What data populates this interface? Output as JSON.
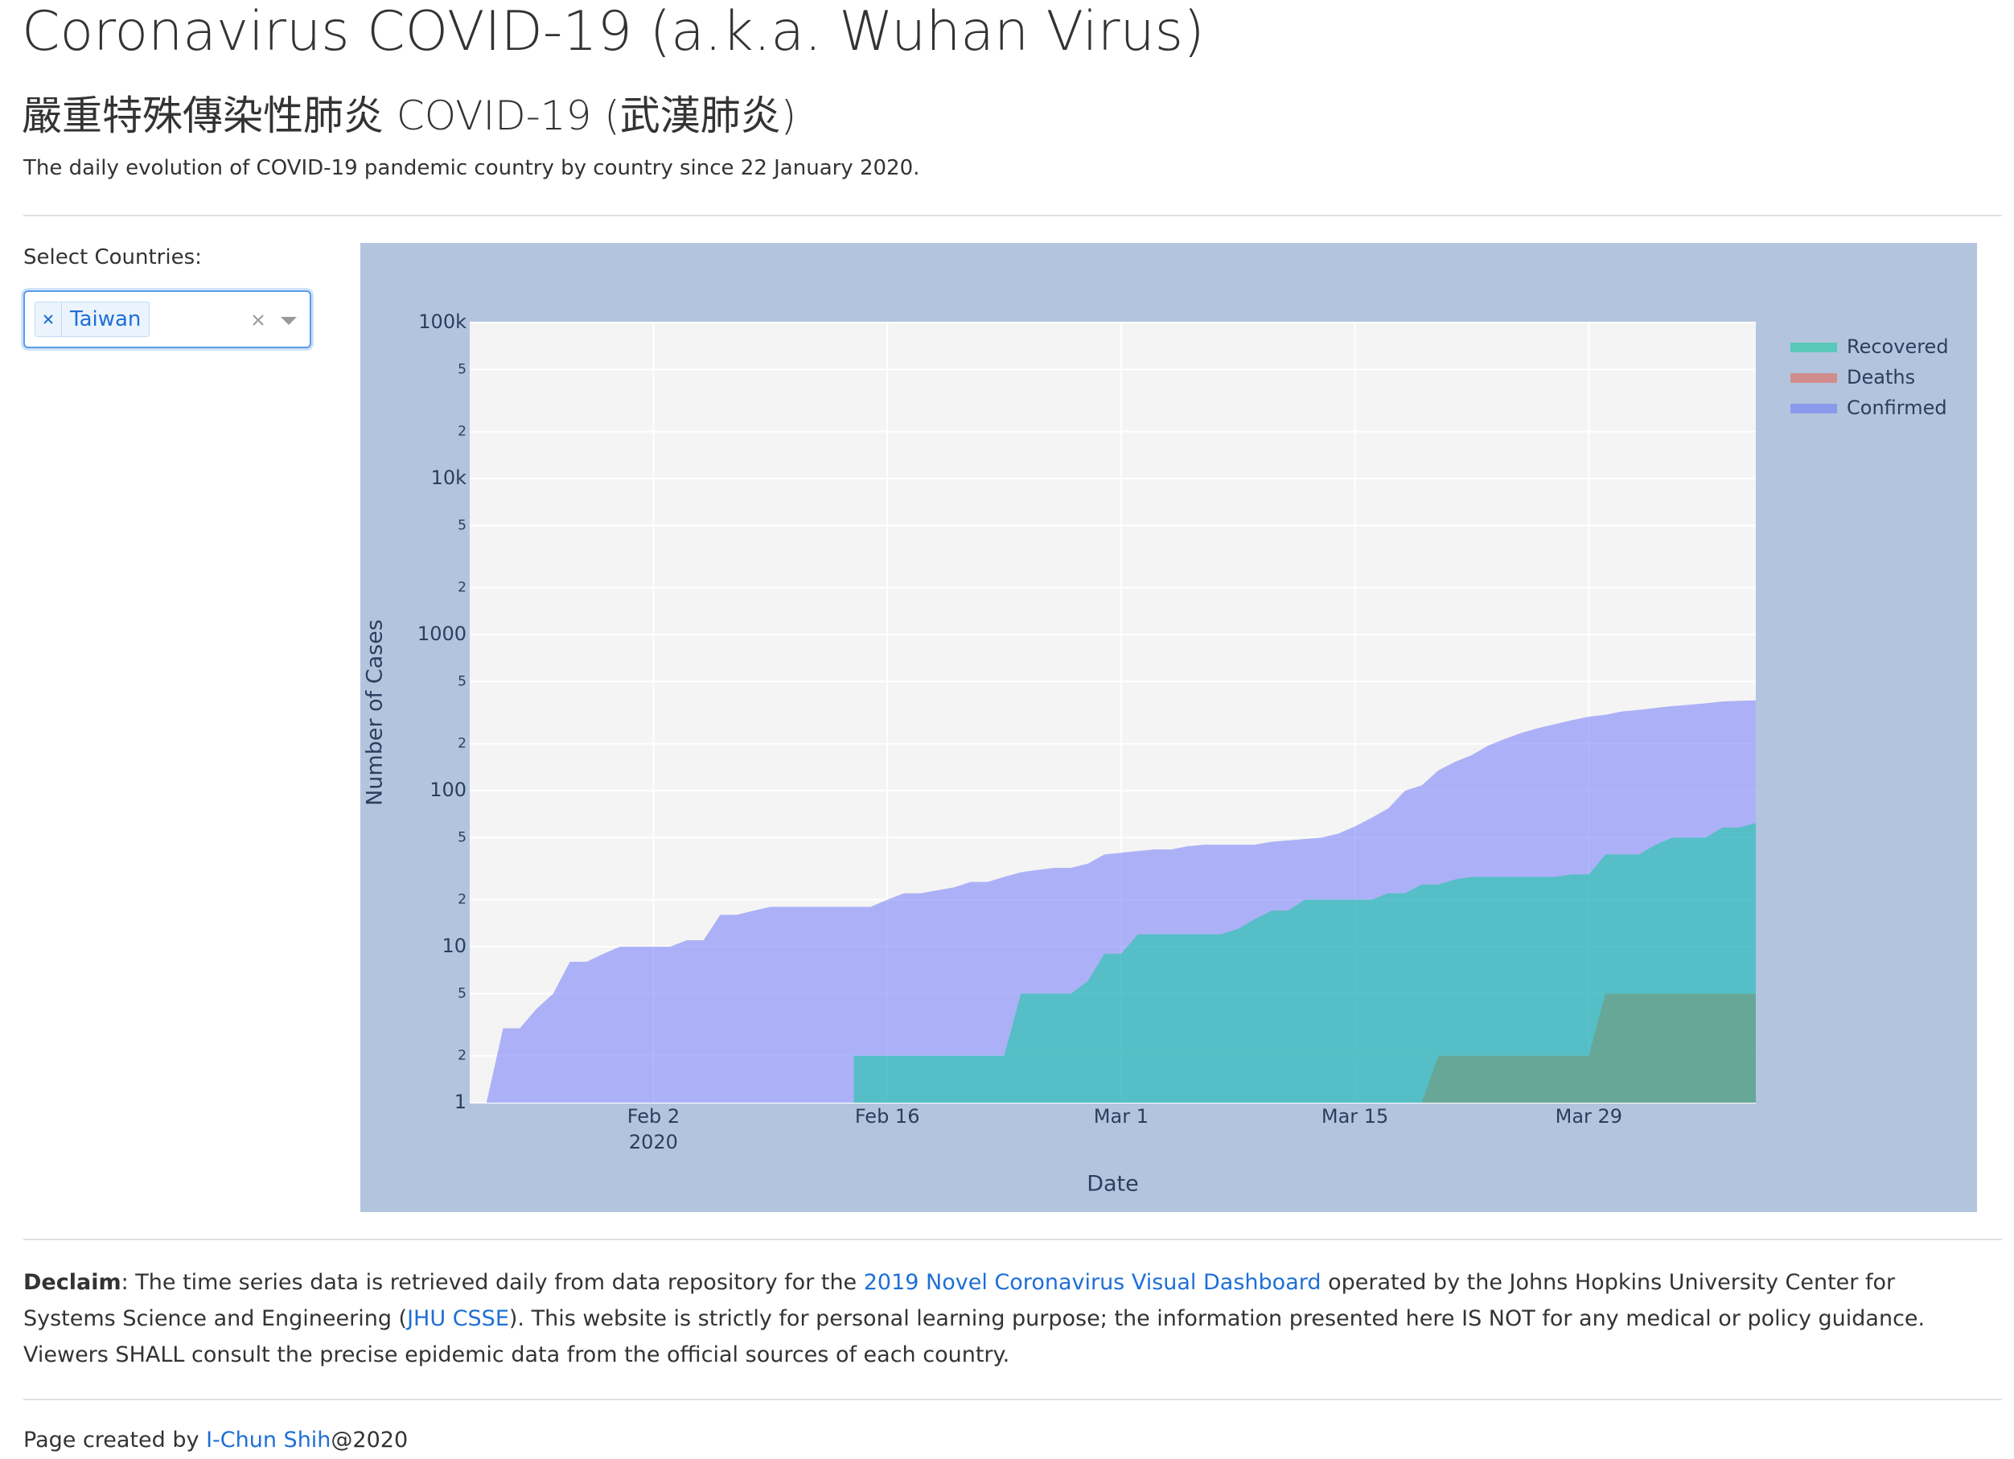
{
  "header": {
    "title": "Coronavirus COVID-19 (a.k.a. Wuhan Virus)",
    "subtitle": "嚴重特殊傳染性肺炎 COVID-19 (武漢肺炎)",
    "description": "The daily evolution of COVID-19 pandemic country by country since 22 January 2020."
  },
  "selector": {
    "label": "Select Countries:",
    "selected": [
      "Taiwan"
    ]
  },
  "chart_data": {
    "type": "area",
    "x": [
      "2020-01-22",
      "2020-01-23",
      "2020-01-24",
      "2020-01-25",
      "2020-01-26",
      "2020-01-27",
      "2020-01-28",
      "2020-01-29",
      "2020-01-30",
      "2020-01-31",
      "2020-02-01",
      "2020-02-02",
      "2020-02-03",
      "2020-02-04",
      "2020-02-05",
      "2020-02-06",
      "2020-02-07",
      "2020-02-08",
      "2020-02-09",
      "2020-02-10",
      "2020-02-11",
      "2020-02-12",
      "2020-02-13",
      "2020-02-14",
      "2020-02-15",
      "2020-02-16",
      "2020-02-17",
      "2020-02-18",
      "2020-02-19",
      "2020-02-20",
      "2020-02-21",
      "2020-02-22",
      "2020-02-23",
      "2020-02-24",
      "2020-02-25",
      "2020-02-26",
      "2020-02-27",
      "2020-02-28",
      "2020-02-29",
      "2020-03-01",
      "2020-03-02",
      "2020-03-03",
      "2020-03-04",
      "2020-03-05",
      "2020-03-06",
      "2020-03-07",
      "2020-03-08",
      "2020-03-09",
      "2020-03-10",
      "2020-03-11",
      "2020-03-12",
      "2020-03-13",
      "2020-03-14",
      "2020-03-15",
      "2020-03-16",
      "2020-03-17",
      "2020-03-18",
      "2020-03-19",
      "2020-03-20",
      "2020-03-21",
      "2020-03-22",
      "2020-03-23",
      "2020-03-24",
      "2020-03-25",
      "2020-03-26",
      "2020-03-27",
      "2020-03-28",
      "2020-03-29",
      "2020-03-30",
      "2020-03-31",
      "2020-04-01",
      "2020-04-02",
      "2020-04-03",
      "2020-04-04",
      "2020-04-05",
      "2020-04-06",
      "2020-04-07",
      "2020-04-08"
    ],
    "series": [
      {
        "name": "Recovered",
        "color": "#00cc96",
        "values": [
          null,
          null,
          null,
          null,
          null,
          null,
          null,
          null,
          null,
          null,
          null,
          null,
          null,
          null,
          null,
          null,
          null,
          null,
          null,
          null,
          null,
          null,
          null,
          2,
          2,
          2,
          2,
          2,
          2,
          2,
          2,
          2,
          2,
          5,
          5,
          5,
          5,
          6,
          9,
          9,
          12,
          12,
          12,
          12,
          12,
          12,
          13,
          15,
          17,
          17,
          20,
          20,
          20,
          20,
          20,
          22,
          22,
          25,
          25,
          27,
          28,
          28,
          28,
          28,
          28,
          28,
          29,
          29,
          39,
          39,
          39,
          45,
          50,
          50,
          50,
          58,
          58,
          62
        ]
      },
      {
        "name": "Deaths",
        "color": "#ef553b",
        "values": [
          null,
          null,
          null,
          null,
          null,
          null,
          null,
          null,
          null,
          null,
          null,
          null,
          null,
          null,
          null,
          null,
          null,
          null,
          null,
          null,
          null,
          null,
          null,
          null,
          null,
          null,
          null,
          null,
          null,
          null,
          null,
          null,
          null,
          null,
          null,
          null,
          null,
          null,
          null,
          null,
          null,
          null,
          null,
          null,
          null,
          null,
          null,
          null,
          null,
          null,
          null,
          null,
          null,
          null,
          null,
          null,
          null,
          1,
          2,
          2,
          2,
          2,
          2,
          2,
          2,
          2,
          2,
          2,
          5,
          5,
          5,
          5,
          5,
          5,
          5,
          5,
          5,
          5
        ]
      },
      {
        "name": "Confirmed",
        "color": "#636efa",
        "values": [
          1,
          1,
          3,
          3,
          4,
          5,
          8,
          8,
          9,
          10,
          10,
          10,
          10,
          11,
          11,
          16,
          16,
          17,
          18,
          18,
          18,
          18,
          18,
          18,
          18,
          20,
          22,
          22,
          23,
          24,
          26,
          26,
          28,
          30,
          31,
          32,
          32,
          34,
          39,
          40,
          41,
          42,
          42,
          44,
          45,
          45,
          45,
          45,
          47,
          48,
          49,
          50,
          53,
          59,
          67,
          77,
          100,
          108,
          135,
          153,
          169,
          195,
          215,
          235,
          252,
          267,
          283,
          298,
          306,
          322,
          329,
          339,
          348,
          355,
          363,
          373,
          376,
          379
        ]
      }
    ],
    "xlabel": "Date",
    "ylabel": "Number of Cases",
    "xlim": [
      "2020-01-22",
      "2020-04-08"
    ],
    "xticks": [
      {
        "value": "2020-02-02",
        "label": "Feb 2",
        "sublabel": "2020"
      },
      {
        "value": "2020-02-16",
        "label": "Feb 16"
      },
      {
        "value": "2020-03-01",
        "label": "Mar 1"
      },
      {
        "value": "2020-03-15",
        "label": "Mar 15"
      },
      {
        "value": "2020-03-29",
        "label": "Mar 29"
      }
    ],
    "ylim": [
      1,
      100000
    ],
    "yticks": [
      1,
      {
        "value": 2,
        "label": "2"
      },
      {
        "value": 5,
        "label": "5"
      },
      10,
      {
        "value": 20,
        "label": "2"
      },
      {
        "value": 50,
        "label": "5"
      },
      100,
      {
        "value": 200,
        "label": "2"
      },
      {
        "value": 500,
        "label": "5"
      },
      1000,
      {
        "value": 2000,
        "label": "2"
      },
      {
        "value": 5000,
        "label": "5"
      },
      {
        "value": 10000,
        "label": "10k"
      },
      {
        "value": 20000,
        "label": "2"
      },
      {
        "value": 50000,
        "label": "5"
      },
      {
        "value": 100000,
        "label": "100k"
      }
    ],
    "log_y": true,
    "grid": true,
    "legend": "top-right-outside"
  },
  "declaim": {
    "label": "Declaim",
    "text1": ": The time series data is retrieved daily from data repository for the ",
    "link1": "2019 Novel Coronavirus Visual Dashboard",
    "text2": " operated by the Johns Hopkins University Center for Systems Science and Engineering (",
    "link2": "JHU CSSE",
    "text3": "). This website is strictly for personal learning purpose; the information presented here IS NOT for any medical or policy guidance. Viewers SHALL consult the precise epidemic data from the official sources of each country."
  },
  "footer": {
    "text": "Page created by ",
    "link": "I-Chun Shih",
    "suffix": "@2020"
  }
}
